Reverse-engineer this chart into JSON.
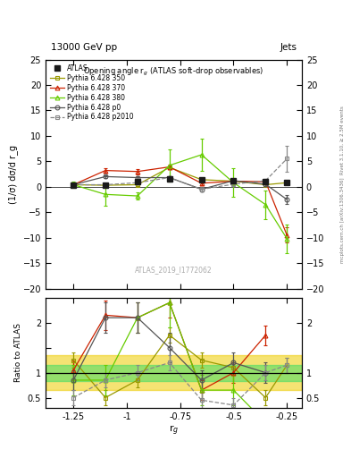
{
  "title_top": "13000 GeV pp",
  "title_right": "Jets",
  "plot_title": "Opening angle r$_g$ (ATLAS soft-drop observables)",
  "ylabel_main": "(1/σ) dσ/d r_g",
  "ylabel_ratio": "Ratio to ATLAS",
  "xlabel": "r$_g$",
  "watermark": "ATLAS_2019_I1772062",
  "rivet_text": "Rivet 3.1.10, ≥ 2.5M events",
  "mcplots_text": "mcplots.cern.ch [arXiv:1306.3436]",
  "x_values": [
    -1.25,
    -1.1,
    -0.95,
    -0.8,
    -0.65,
    -0.5,
    -0.35,
    -0.25
  ],
  "atlas_y": [
    0.4,
    0.4,
    1.0,
    1.5,
    1.3,
    1.2,
    1.1,
    0.8
  ],
  "atlas_yerr": [
    0.25,
    0.25,
    0.25,
    0.25,
    0.25,
    0.25,
    0.25,
    0.25
  ],
  "p350_y": [
    0.4,
    0.3,
    0.4,
    3.8,
    1.4,
    1.1,
    0.4,
    0.8
  ],
  "p350_yerr": [
    0.2,
    0.2,
    0.2,
    0.2,
    0.2,
    0.2,
    0.2,
    0.2
  ],
  "p370_y": [
    0.4,
    3.2,
    3.0,
    3.9,
    0.7,
    1.1,
    1.0,
    -9.5
  ],
  "p370_yerr": [
    0.4,
    0.5,
    0.5,
    0.5,
    0.4,
    0.4,
    0.4,
    1.5
  ],
  "p380_y": [
    0.4,
    -1.5,
    -1.8,
    4.2,
    6.3,
    0.8,
    -3.5,
    -10.2
  ],
  "p380_yerr": [
    0.6,
    2.2,
    0.7,
    3.2,
    3.2,
    2.8,
    2.8,
    2.8
  ],
  "p0_y": [
    0.4,
    2.0,
    1.8,
    1.8,
    -0.5,
    1.2,
    0.5,
    -2.5
  ],
  "p0_yerr": [
    0.25,
    0.25,
    0.25,
    0.25,
    0.4,
    0.25,
    0.4,
    0.8
  ],
  "p2010_y": [
    0.4,
    0.4,
    0.8,
    1.8,
    -0.5,
    0.5,
    1.2,
    5.5
  ],
  "p2010_yerr": [
    0.25,
    0.25,
    0.25,
    0.25,
    0.4,
    0.25,
    0.4,
    2.5
  ],
  "ratio_p350": [
    1.25,
    0.5,
    0.85,
    1.75,
    1.25,
    1.1,
    0.5,
    1.15
  ],
  "ratio_p350_err": [
    0.15,
    0.15,
    0.15,
    0.15,
    0.15,
    0.15,
    0.15,
    0.15
  ],
  "ratio_p370": [
    1.05,
    2.15,
    2.1,
    2.4,
    0.65,
    1.0,
    1.75,
    null
  ],
  "ratio_p370_err": [
    0.2,
    0.3,
    0.3,
    0.3,
    0.2,
    0.2,
    0.2,
    null
  ],
  "ratio_p380": [
    0.85,
    0.85,
    2.1,
    2.4,
    0.65,
    0.65,
    0.0,
    null
  ],
  "ratio_p380_err": [
    0.3,
    0.3,
    0.3,
    0.5,
    0.3,
    0.3,
    0.3,
    null
  ],
  "ratio_p0": [
    0.85,
    2.1,
    2.1,
    1.5,
    0.85,
    1.2,
    1.0,
    null
  ],
  "ratio_p0_err": [
    0.2,
    0.3,
    0.3,
    0.3,
    0.2,
    0.2,
    0.2,
    null
  ],
  "ratio_p2010": [
    0.5,
    0.85,
    1.0,
    1.2,
    0.45,
    0.35,
    1.0,
    1.15
  ],
  "ratio_p2010_err": [
    0.15,
    0.15,
    0.15,
    0.15,
    0.15,
    0.15,
    0.15,
    0.15
  ],
  "color_atlas": "#1a1a1a",
  "color_p350": "#999900",
  "color_p370": "#cc2200",
  "color_p380": "#66cc00",
  "color_p0": "#555555",
  "color_p2010": "#888888",
  "band_green_lo": 0.84,
  "band_green_hi": 1.16,
  "band_yellow_lo": 0.65,
  "band_yellow_hi": 1.35,
  "band_green_color": "#44dd66",
  "band_yellow_color": "#eecc00",
  "ylim_main": [
    -20,
    25
  ],
  "ylim_ratio": [
    0.3,
    2.5
  ],
  "xlim": [
    -1.38,
    -0.18
  ],
  "xticks": [
    -1.25,
    -1.0,
    -0.75,
    -0.5,
    -0.25
  ],
  "xtick_labels": [
    "-1.25",
    "-1",
    "-0.75",
    "-0.5",
    "-0.25"
  ]
}
